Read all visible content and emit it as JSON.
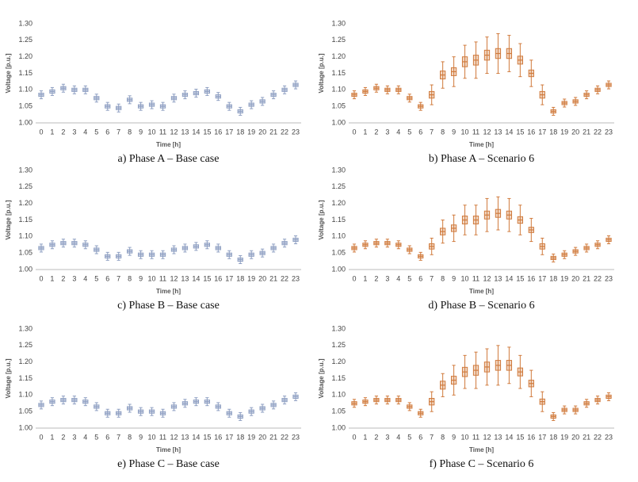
{
  "chart_data": [
    {
      "type": "box",
      "caption": "a) Phase A – Base case",
      "x_label": "Time [h]",
      "y_label": "Voltage [p.u.]",
      "color": "#8e9fc2",
      "categories": [
        "0",
        "1",
        "2",
        "3",
        "4",
        "5",
        "6",
        "7",
        "8",
        "9",
        "10",
        "11",
        "12",
        "13",
        "14",
        "15",
        "16",
        "17",
        "18",
        "19",
        "20",
        "21",
        "22",
        "23"
      ],
      "ylim": [
        1.0,
        1.3
      ],
      "yticks": [
        {
          "value": 1.0,
          "label": "1.00"
        },
        {
          "value": 1.05,
          "label": "1.05"
        },
        {
          "value": 1.1,
          "label": "1.10"
        },
        {
          "value": 1.15,
          "label": "1.15"
        },
        {
          "value": 1.2,
          "label": "1.20"
        },
        {
          "value": 1.25,
          "label": "1.25"
        },
        {
          "value": 1.3,
          "label": "1.30"
        }
      ],
      "min": [
        1.073,
        1.083,
        1.093,
        1.088,
        1.088,
        1.063,
        1.038,
        1.033,
        1.058,
        1.038,
        1.043,
        1.038,
        1.063,
        1.073,
        1.078,
        1.083,
        1.068,
        1.038,
        1.023,
        1.043,
        1.053,
        1.073,
        1.088,
        1.103
      ],
      "q1": [
        1.08,
        1.09,
        1.1,
        1.095,
        1.095,
        1.07,
        1.045,
        1.04,
        1.065,
        1.045,
        1.05,
        1.045,
        1.07,
        1.08,
        1.085,
        1.09,
        1.075,
        1.045,
        1.03,
        1.05,
        1.06,
        1.08,
        1.095,
        1.11
      ],
      "median": [
        1.085,
        1.095,
        1.105,
        1.1,
        1.1,
        1.075,
        1.05,
        1.045,
        1.07,
        1.05,
        1.055,
        1.05,
        1.075,
        1.085,
        1.09,
        1.095,
        1.08,
        1.05,
        1.035,
        1.055,
        1.065,
        1.085,
        1.1,
        1.115
      ],
      "q3": [
        1.09,
        1.1,
        1.11,
        1.105,
        1.105,
        1.08,
        1.055,
        1.05,
        1.075,
        1.055,
        1.06,
        1.055,
        1.08,
        1.09,
        1.095,
        1.1,
        1.085,
        1.055,
        1.04,
        1.06,
        1.07,
        1.09,
        1.105,
        1.12
      ],
      "max": [
        1.097,
        1.107,
        1.117,
        1.112,
        1.112,
        1.087,
        1.062,
        1.057,
        1.082,
        1.062,
        1.067,
        1.062,
        1.087,
        1.097,
        1.102,
        1.107,
        1.092,
        1.062,
        1.047,
        1.067,
        1.077,
        1.097,
        1.112,
        1.127
      ]
    },
    {
      "type": "box",
      "caption": "b) Phase A – Scenario 6",
      "x_label": "Time [h]",
      "y_label": "Voltage [p.u.]",
      "color": "#d07a3c",
      "categories": [
        "0",
        "1",
        "2",
        "3",
        "4",
        "5",
        "6",
        "7",
        "8",
        "9",
        "10",
        "11",
        "12",
        "13",
        "14",
        "15",
        "16",
        "17",
        "18",
        "19",
        "20",
        "21",
        "22",
        "23"
      ],
      "ylim": [
        1.0,
        1.3
      ],
      "yticks": [
        {
          "value": 1.0,
          "label": "1.00"
        },
        {
          "value": 1.05,
          "label": "1.05"
        },
        {
          "value": 1.1,
          "label": "1.10"
        },
        {
          "value": 1.15,
          "label": "1.15"
        },
        {
          "value": 1.2,
          "label": "1.20"
        },
        {
          "value": 1.25,
          "label": "1.25"
        },
        {
          "value": 1.3,
          "label": "1.30"
        }
      ],
      "min": [
        1.073,
        1.083,
        1.093,
        1.088,
        1.088,
        1.063,
        1.038,
        1.055,
        1.105,
        1.11,
        1.135,
        1.135,
        1.15,
        1.15,
        1.155,
        1.14,
        1.11,
        1.055,
        1.023,
        1.048,
        1.053,
        1.073,
        1.088,
        1.103
      ],
      "q1": [
        1.08,
        1.09,
        1.1,
        1.095,
        1.095,
        1.07,
        1.045,
        1.075,
        1.133,
        1.143,
        1.17,
        1.175,
        1.19,
        1.195,
        1.195,
        1.178,
        1.14,
        1.075,
        1.03,
        1.055,
        1.06,
        1.08,
        1.095,
        1.11
      ],
      "median": [
        1.085,
        1.095,
        1.105,
        1.1,
        1.1,
        1.075,
        1.05,
        1.085,
        1.145,
        1.155,
        1.185,
        1.19,
        1.205,
        1.21,
        1.21,
        1.19,
        1.15,
        1.085,
        1.035,
        1.06,
        1.065,
        1.085,
        1.1,
        1.115
      ],
      "q3": [
        1.09,
        1.1,
        1.11,
        1.105,
        1.105,
        1.08,
        1.055,
        1.095,
        1.157,
        1.167,
        1.2,
        1.205,
        1.22,
        1.225,
        1.225,
        1.202,
        1.16,
        1.095,
        1.04,
        1.065,
        1.07,
        1.09,
        1.105,
        1.12
      ],
      "max": [
        1.097,
        1.107,
        1.117,
        1.112,
        1.112,
        1.087,
        1.062,
        1.115,
        1.185,
        1.2,
        1.235,
        1.245,
        1.26,
        1.27,
        1.265,
        1.24,
        1.19,
        1.115,
        1.047,
        1.072,
        1.077,
        1.097,
        1.112,
        1.127
      ]
    },
    {
      "type": "box",
      "caption": "c) Phase B – Base case",
      "x_label": "Time [h]",
      "y_label": "Voltage [p.u.]",
      "color": "#8e9fc2",
      "categories": [
        "0",
        "1",
        "2",
        "3",
        "4",
        "5",
        "6",
        "7",
        "8",
        "9",
        "10",
        "11",
        "12",
        "13",
        "14",
        "15",
        "16",
        "17",
        "18",
        "19",
        "20",
        "21",
        "22",
        "23"
      ],
      "ylim": [
        1.0,
        1.3
      ],
      "yticks": [
        {
          "value": 1.0,
          "label": "1.00"
        },
        {
          "value": 1.05,
          "label": "1.05"
        },
        {
          "value": 1.1,
          "label": "1.10"
        },
        {
          "value": 1.15,
          "label": "1.15"
        },
        {
          "value": 1.2,
          "label": "1.20"
        },
        {
          "value": 1.25,
          "label": "1.25"
        },
        {
          "value": 1.3,
          "label": "1.30"
        }
      ],
      "min": [
        1.053,
        1.063,
        1.068,
        1.068,
        1.063,
        1.048,
        1.028,
        1.028,
        1.043,
        1.033,
        1.033,
        1.033,
        1.048,
        1.053,
        1.058,
        1.063,
        1.053,
        1.033,
        1.018,
        1.033,
        1.038,
        1.053,
        1.068,
        1.078
      ],
      "q1": [
        1.06,
        1.07,
        1.075,
        1.075,
        1.07,
        1.055,
        1.035,
        1.035,
        1.05,
        1.04,
        1.04,
        1.04,
        1.055,
        1.06,
        1.065,
        1.07,
        1.06,
        1.04,
        1.025,
        1.04,
        1.045,
        1.06,
        1.075,
        1.085
      ],
      "median": [
        1.065,
        1.075,
        1.08,
        1.08,
        1.075,
        1.06,
        1.04,
        1.04,
        1.055,
        1.045,
        1.045,
        1.045,
        1.06,
        1.065,
        1.07,
        1.075,
        1.065,
        1.045,
        1.03,
        1.045,
        1.05,
        1.065,
        1.08,
        1.09
      ],
      "q3": [
        1.07,
        1.08,
        1.085,
        1.085,
        1.08,
        1.065,
        1.045,
        1.045,
        1.06,
        1.05,
        1.05,
        1.05,
        1.065,
        1.07,
        1.075,
        1.08,
        1.07,
        1.05,
        1.035,
        1.05,
        1.055,
        1.07,
        1.085,
        1.095
      ],
      "max": [
        1.077,
        1.087,
        1.092,
        1.092,
        1.087,
        1.072,
        1.052,
        1.052,
        1.067,
        1.057,
        1.057,
        1.057,
        1.072,
        1.077,
        1.082,
        1.087,
        1.077,
        1.057,
        1.042,
        1.057,
        1.062,
        1.077,
        1.092,
        1.102
      ]
    },
    {
      "type": "box",
      "caption": "d) Phase B – Scenario 6",
      "x_label": "Time [h]",
      "y_label": "Voltage [p.u.]",
      "color": "#d07a3c",
      "categories": [
        "0",
        "1",
        "2",
        "3",
        "4",
        "5",
        "6",
        "7",
        "8",
        "9",
        "10",
        "11",
        "12",
        "13",
        "14",
        "15",
        "16",
        "17",
        "18",
        "19",
        "20",
        "21",
        "22",
        "23"
      ],
      "ylim": [
        1.0,
        1.3
      ],
      "yticks": [
        {
          "value": 1.0,
          "label": "1.00"
        },
        {
          "value": 1.05,
          "label": "1.05"
        },
        {
          "value": 1.1,
          "label": "1.10"
        },
        {
          "value": 1.15,
          "label": "1.15"
        },
        {
          "value": 1.2,
          "label": "1.20"
        },
        {
          "value": 1.25,
          "label": "1.25"
        },
        {
          "value": 1.3,
          "label": "1.30"
        }
      ],
      "min": [
        1.053,
        1.063,
        1.068,
        1.068,
        1.063,
        1.048,
        1.028,
        1.045,
        1.08,
        1.085,
        1.105,
        1.105,
        1.115,
        1.12,
        1.115,
        1.105,
        1.085,
        1.045,
        1.023,
        1.033,
        1.043,
        1.053,
        1.063,
        1.078
      ],
      "q1": [
        1.06,
        1.07,
        1.075,
        1.075,
        1.07,
        1.055,
        1.035,
        1.062,
        1.105,
        1.115,
        1.138,
        1.138,
        1.153,
        1.158,
        1.153,
        1.14,
        1.112,
        1.062,
        1.03,
        1.04,
        1.05,
        1.06,
        1.07,
        1.085
      ],
      "median": [
        1.065,
        1.075,
        1.08,
        1.08,
        1.075,
        1.06,
        1.04,
        1.07,
        1.115,
        1.125,
        1.15,
        1.15,
        1.165,
        1.17,
        1.165,
        1.15,
        1.12,
        1.07,
        1.035,
        1.045,
        1.055,
        1.065,
        1.075,
        1.09
      ],
      "q3": [
        1.07,
        1.08,
        1.085,
        1.085,
        1.08,
        1.065,
        1.045,
        1.078,
        1.125,
        1.135,
        1.162,
        1.162,
        1.177,
        1.182,
        1.177,
        1.16,
        1.128,
        1.078,
        1.04,
        1.05,
        1.06,
        1.07,
        1.08,
        1.095
      ],
      "max": [
        1.077,
        1.087,
        1.092,
        1.092,
        1.087,
        1.072,
        1.052,
        1.095,
        1.15,
        1.165,
        1.195,
        1.195,
        1.215,
        1.22,
        1.215,
        1.195,
        1.155,
        1.095,
        1.047,
        1.057,
        1.067,
        1.077,
        1.087,
        1.102
      ]
    },
    {
      "type": "box",
      "caption": "e) Phase C – Base case",
      "x_label": "Time [h]",
      "y_label": "Voltage [p.u.]",
      "color": "#8e9fc2",
      "categories": [
        "0",
        "1",
        "2",
        "3",
        "4",
        "5",
        "6",
        "7",
        "8",
        "9",
        "10",
        "11",
        "12",
        "13",
        "14",
        "15",
        "16",
        "17",
        "18",
        "19",
        "20",
        "21",
        "22",
        "23"
      ],
      "ylim": [
        1.0,
        1.3
      ],
      "yticks": [
        {
          "value": 1.0,
          "label": "1.00"
        },
        {
          "value": 1.05,
          "label": "1.05"
        },
        {
          "value": 1.1,
          "label": "1.10"
        },
        {
          "value": 1.15,
          "label": "1.15"
        },
        {
          "value": 1.2,
          "label": "1.20"
        },
        {
          "value": 1.25,
          "label": "1.25"
        },
        {
          "value": 1.3,
          "label": "1.30"
        }
      ],
      "min": [
        1.058,
        1.068,
        1.073,
        1.073,
        1.068,
        1.053,
        1.033,
        1.033,
        1.048,
        1.038,
        1.038,
        1.033,
        1.053,
        1.063,
        1.068,
        1.068,
        1.053,
        1.033,
        1.023,
        1.038,
        1.048,
        1.058,
        1.073,
        1.083
      ],
      "q1": [
        1.065,
        1.075,
        1.08,
        1.08,
        1.075,
        1.06,
        1.04,
        1.04,
        1.055,
        1.045,
        1.045,
        1.04,
        1.06,
        1.07,
        1.075,
        1.075,
        1.06,
        1.04,
        1.03,
        1.045,
        1.055,
        1.065,
        1.08,
        1.09
      ],
      "median": [
        1.07,
        1.08,
        1.085,
        1.085,
        1.08,
        1.065,
        1.045,
        1.045,
        1.06,
        1.05,
        1.05,
        1.045,
        1.065,
        1.075,
        1.08,
        1.08,
        1.065,
        1.045,
        1.035,
        1.05,
        1.06,
        1.07,
        1.085,
        1.095
      ],
      "q3": [
        1.075,
        1.085,
        1.09,
        1.09,
        1.085,
        1.07,
        1.05,
        1.05,
        1.065,
        1.055,
        1.055,
        1.05,
        1.07,
        1.08,
        1.085,
        1.085,
        1.07,
        1.05,
        1.04,
        1.055,
        1.065,
        1.075,
        1.09,
        1.1
      ],
      "max": [
        1.082,
        1.092,
        1.097,
        1.097,
        1.092,
        1.077,
        1.057,
        1.057,
        1.072,
        1.062,
        1.062,
        1.057,
        1.077,
        1.087,
        1.092,
        1.092,
        1.077,
        1.057,
        1.047,
        1.062,
        1.072,
        1.082,
        1.097,
        1.107
      ]
    },
    {
      "type": "box",
      "caption": "f) Phase C – Scenario 6",
      "x_label": "Time [h]",
      "y_label": "Voltage [p.u.]",
      "color": "#d07a3c",
      "categories": [
        "0",
        "1",
        "2",
        "3",
        "4",
        "5",
        "6",
        "7",
        "8",
        "9",
        "10",
        "11",
        "12",
        "13",
        "14",
        "15",
        "16",
        "17",
        "18",
        "19",
        "20",
        "21",
        "22",
        "23"
      ],
      "ylim": [
        1.0,
        1.3
      ],
      "yticks": [
        {
          "value": 1.0,
          "label": "1.00"
        },
        {
          "value": 1.05,
          "label": "1.05"
        },
        {
          "value": 1.1,
          "label": "1.10"
        },
        {
          "value": 1.15,
          "label": "1.15"
        },
        {
          "value": 1.2,
          "label": "1.20"
        },
        {
          "value": 1.25,
          "label": "1.25"
        },
        {
          "value": 1.3,
          "label": "1.30"
        }
      ],
      "min": [
        1.063,
        1.068,
        1.073,
        1.073,
        1.073,
        1.053,
        1.033,
        1.05,
        1.095,
        1.1,
        1.12,
        1.12,
        1.13,
        1.13,
        1.135,
        1.12,
        1.095,
        1.05,
        1.023,
        1.043,
        1.043,
        1.063,
        1.073,
        1.083
      ],
      "q1": [
        1.07,
        1.075,
        1.08,
        1.08,
        1.08,
        1.06,
        1.04,
        1.07,
        1.118,
        1.133,
        1.156,
        1.16,
        1.17,
        1.175,
        1.175,
        1.158,
        1.125,
        1.072,
        1.03,
        1.05,
        1.05,
        1.07,
        1.08,
        1.09
      ],
      "median": [
        1.075,
        1.08,
        1.085,
        1.085,
        1.085,
        1.065,
        1.045,
        1.08,
        1.13,
        1.145,
        1.17,
        1.175,
        1.185,
        1.19,
        1.19,
        1.17,
        1.135,
        1.08,
        1.035,
        1.055,
        1.055,
        1.075,
        1.085,
        1.095
      ],
      "q3": [
        1.08,
        1.085,
        1.09,
        1.09,
        1.09,
        1.07,
        1.05,
        1.09,
        1.142,
        1.157,
        1.184,
        1.19,
        1.2,
        1.205,
        1.205,
        1.182,
        1.145,
        1.088,
        1.04,
        1.06,
        1.06,
        1.08,
        1.09,
        1.1
      ],
      "max": [
        1.087,
        1.092,
        1.097,
        1.097,
        1.097,
        1.077,
        1.057,
        1.11,
        1.165,
        1.19,
        1.22,
        1.23,
        1.24,
        1.25,
        1.245,
        1.22,
        1.175,
        1.11,
        1.047,
        1.067,
        1.067,
        1.087,
        1.097,
        1.107
      ]
    }
  ]
}
